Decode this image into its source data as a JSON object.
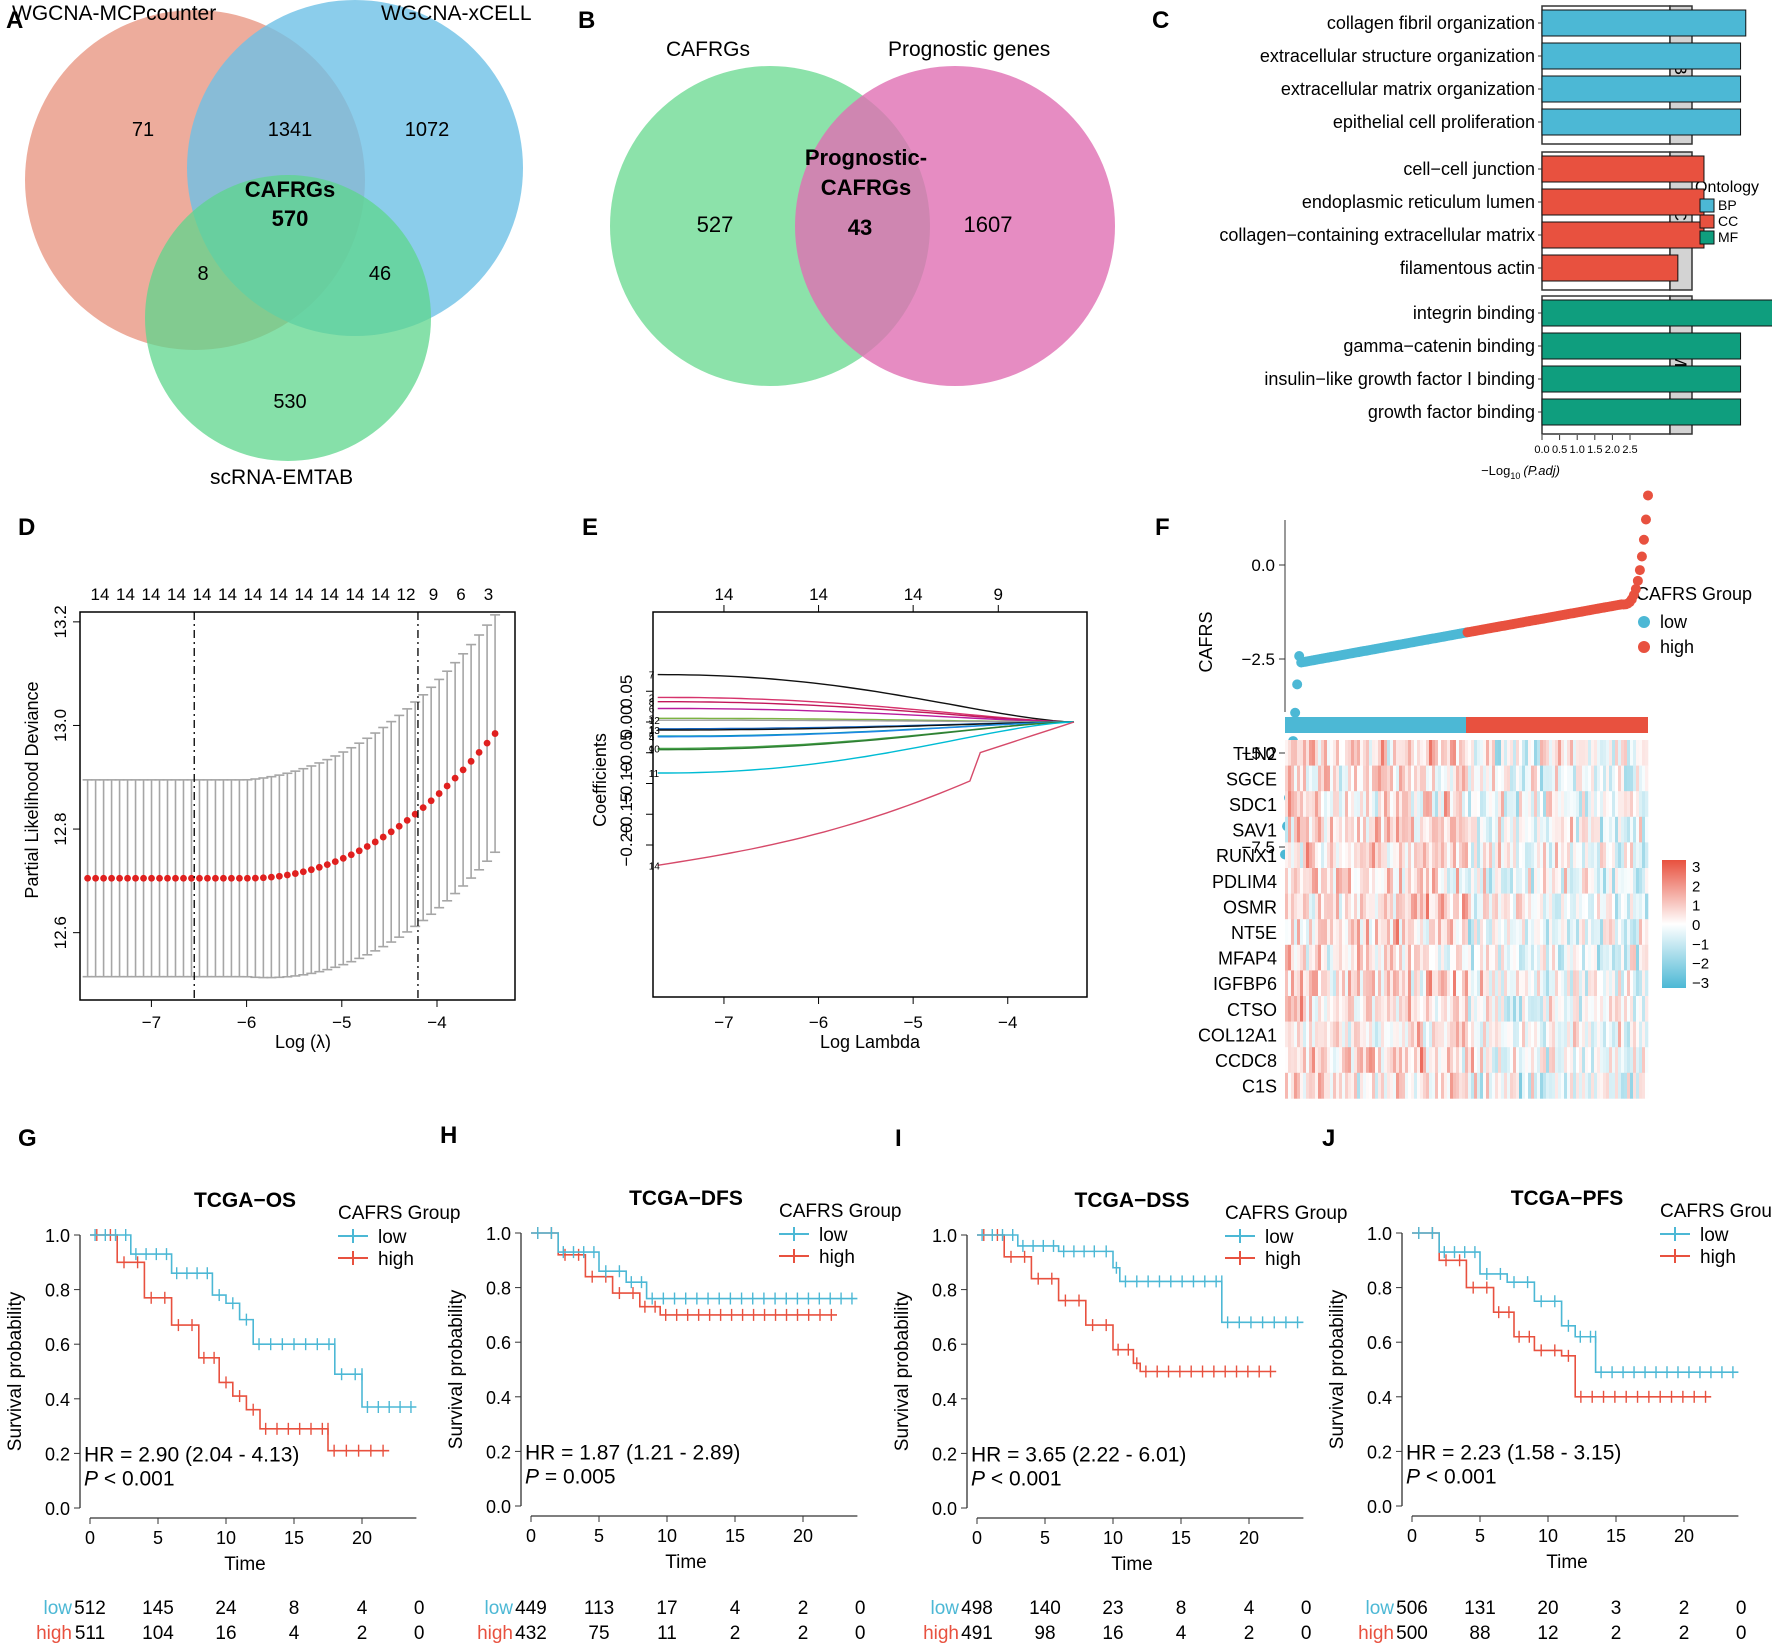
{
  "colors": {
    "low": "#4CB8D5",
    "high": "#E8513F",
    "BP": "#4CB8D5",
    "CC": "#E8513F",
    "MF": "#0F9E7E",
    "venn_red": "#EBA391",
    "venn_blue": "#82C9E8",
    "venn_green": "#7DD9A0",
    "venn_pink": "#E68DC0",
    "point_red": "#E0201F",
    "gray": "#A6A6A6"
  },
  "panels": {
    "A": "A",
    "B": "B",
    "C": "C",
    "D": "D",
    "E": "E",
    "F": "F",
    "G": "G",
    "H": "H",
    "I": "I",
    "J": "J"
  },
  "chart_data": [
    {
      "id": "A",
      "type": "venn",
      "sets": [
        "WGCNA-MCPcounter",
        "WGCNA-xCELL",
        "scRNA-EMTAB"
      ],
      "regions": {
        "only_mcp": "71",
        "mcp_xcell": "1341",
        "only_xcell": "1072",
        "center_label": "CAFRGs",
        "center": "570",
        "mcp_sc": "8",
        "xcell_sc": "46",
        "only_sc": "530"
      }
    },
    {
      "id": "B",
      "type": "venn",
      "sets": [
        "CAFRGs",
        "Prognostic genes"
      ],
      "regions": {
        "left": "527",
        "overlap_label1": "Prognostic-",
        "overlap_label2": "CAFRGs",
        "overlap": "43",
        "right": "1607"
      }
    },
    {
      "id": "C",
      "type": "bar",
      "orientation": "horizontal",
      "xlabel": "−Log",
      "xlabel_sub": "10",
      "xlabel_tail": "(P.adj)",
      "xticks": [
        "0.0",
        "0.5",
        "1.0",
        "1.5",
        "2.0",
        "2.5"
      ],
      "xlim": [
        0,
        2.7
      ],
      "legend_title": "Ontology",
      "legend": [
        "BP",
        "CC",
        "MF"
      ],
      "groups": [
        {
          "name": "BP",
          "terms": [
            "collagen fibril organization",
            "extracellular structure organization",
            "extracellular matrix organization",
            "epithelial cell proliferation"
          ],
          "values": [
            1.95,
            1.9,
            1.9,
            1.9
          ]
        },
        {
          "name": "CC",
          "terms": [
            "cell−cell junction",
            "endoplasmic reticulum lumen",
            "collagen−containing extracellular matrix",
            "filamentous actin"
          ],
          "values": [
            1.55,
            1.55,
            1.55,
            1.3
          ]
        },
        {
          "name": "MF",
          "terms": [
            "integrin binding",
            "gamma−catenin binding",
            "insulin−like growth factor I binding",
            "growth factor binding"
          ],
          "values": [
            2.45,
            1.9,
            1.9,
            1.9
          ]
        }
      ]
    },
    {
      "id": "D",
      "type": "errorbar",
      "xlabel": "Log (λ)",
      "ylabel": "Partial Likelihood Deviance",
      "xticks": [
        "−7",
        "−6",
        "−5",
        "−4"
      ],
      "yticks": [
        "12.6",
        "12.8",
        "13.0",
        "13.2"
      ],
      "top_labels": [
        "14",
        "14",
        "14",
        "14",
        "14",
        "14",
        "14",
        "14",
        "14",
        "14",
        "14",
        "14",
        "12",
        "9",
        "6",
        "3"
      ],
      "lambda_min": -6.55,
      "lambda_1se": -4.2
    },
    {
      "id": "E",
      "type": "line",
      "xlabel": "Log Lambda",
      "ylabel": "Coefficients",
      "xticks": [
        "−7",
        "−6",
        "−5",
        "−4"
      ],
      "yticks": [
        "−0.20",
        "−0.15",
        "−0.10",
        "−0.05",
        "0.00",
        "0.05"
      ],
      "top_labels": [
        "14",
        "14",
        "14",
        "9"
      ],
      "path_labels": [
        "7",
        "2",
        "8",
        "6",
        "3",
        "12",
        "1",
        "13",
        "5",
        "4",
        "10",
        "9",
        "11",
        "14"
      ]
    },
    {
      "id": "F",
      "type": "scatter+heatmap",
      "ylabel": "CAFRS",
      "yticks": [
        "0.0",
        "−2.5",
        "−5.0",
        "−7.5"
      ],
      "legend_title": "CAFRS Group",
      "legend": [
        "low",
        "high"
      ],
      "genes": [
        "TLN2",
        "SGCE",
        "SDC1",
        "SAV1",
        "RUNX1",
        "PDLIM4",
        "OSMR",
        "NT5E",
        "MFAP4",
        "IGFBP6",
        "CTSO",
        "COL12A1",
        "CCDC8",
        "C1S"
      ],
      "scale": [
        "3",
        "2",
        "1",
        "0",
        "−1",
        "−2",
        "−3"
      ]
    },
    {
      "id": "G",
      "type": "km",
      "title": "TCGA−OS",
      "hr": "HR = 2.90 (2.04 - 4.13)",
      "p_sym": "P",
      "p_val": " < 0.001",
      "ylabel": "Survival probability",
      "xlabel": "Time",
      "xticks": [
        "0",
        "5",
        "10",
        "15",
        "20"
      ],
      "yticks": [
        "0.0",
        "0.2",
        "0.4",
        "0.6",
        "0.8",
        "1.0"
      ],
      "legend_title": "CAFRS Group",
      "legend": [
        "low",
        "high"
      ],
      "risk": {
        "low": [
          "512",
          "145",
          "24",
          "8",
          "4",
          "0"
        ],
        "high": [
          "511",
          "104",
          "16",
          "4",
          "2",
          "0"
        ]
      }
    },
    {
      "id": "H",
      "type": "km",
      "title": "TCGA−DFS",
      "hr": "HR = 1.87 (1.21 - 2.89)",
      "p_sym": "P",
      "p_val": " = 0.005",
      "ylabel": "Survival probability",
      "xlabel": "Time",
      "xticks": [
        "0",
        "5",
        "10",
        "15",
        "20"
      ],
      "yticks": [
        "0.0",
        "0.2",
        "0.4",
        "0.6",
        "0.8",
        "1.0"
      ],
      "legend_title": "CAFRS Group",
      "legend": [
        "low",
        "high"
      ],
      "risk": {
        "low": [
          "449",
          "113",
          "17",
          "4",
          "2",
          "0"
        ],
        "high": [
          "432",
          "75",
          "11",
          "2",
          "2",
          "0"
        ]
      }
    },
    {
      "id": "I",
      "type": "km",
      "title": "TCGA−DSS",
      "hr": "HR = 3.65 (2.22 - 6.01)",
      "p_sym": "P",
      "p_val": " < 0.001",
      "ylabel": "Survival probability",
      "xlabel": "Time",
      "xticks": [
        "0",
        "5",
        "10",
        "15",
        "20"
      ],
      "yticks": [
        "0.0",
        "0.2",
        "0.4",
        "0.6",
        "0.8",
        "1.0"
      ],
      "legend_title": "CAFRS Group",
      "legend": [
        "low",
        "high"
      ],
      "risk": {
        "low": [
          "498",
          "140",
          "23",
          "8",
          "4",
          "0"
        ],
        "high": [
          "491",
          "98",
          "16",
          "4",
          "2",
          "0"
        ]
      }
    },
    {
      "id": "J",
      "type": "km",
      "title": "TCGA−PFS",
      "hr": "HR = 2.23 (1.58 - 3.15)",
      "p_sym": "P",
      "p_val": " < 0.001",
      "ylabel": "Survival probability",
      "xlabel": "Time",
      "xticks": [
        "0",
        "5",
        "10",
        "15",
        "20"
      ],
      "yticks": [
        "0.0",
        "0.2",
        "0.4",
        "0.6",
        "0.8",
        "1.0"
      ],
      "legend_title": "CAFRS Group",
      "legend": [
        "low",
        "high"
      ],
      "risk": {
        "low": [
          "506",
          "131",
          "20",
          "3",
          "2",
          "0"
        ],
        "high": [
          "500",
          "88",
          "12",
          "2",
          "2",
          "0"
        ]
      }
    }
  ]
}
